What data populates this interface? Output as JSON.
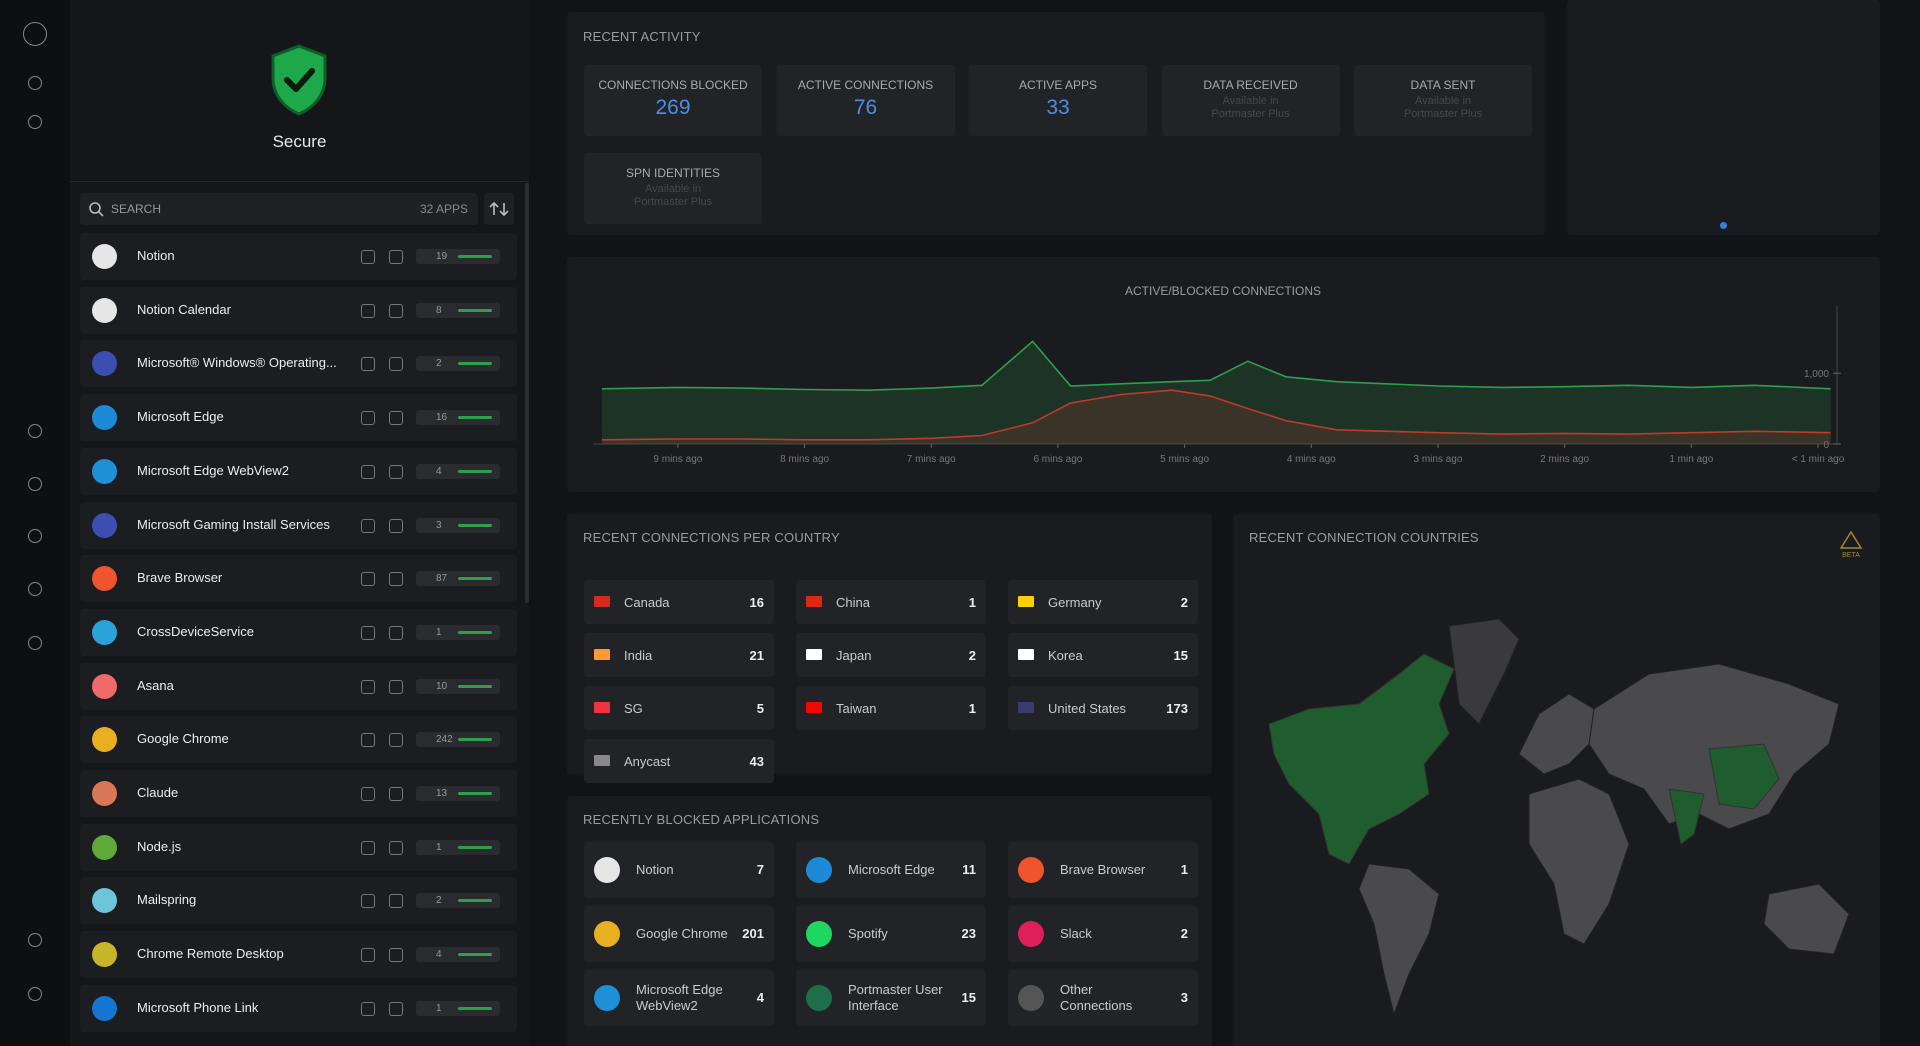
{
  "sidebar": {
    "status": "Secure",
    "search_placeholder": "SEARCH",
    "app_count": "32 APPS",
    "apps": [
      {
        "name": "Notion",
        "connections": 19
      },
      {
        "name": "Notion Calendar",
        "connections": 8
      },
      {
        "name": "Microsoft® Windows® Operating...",
        "connections": 2
      },
      {
        "name": "Microsoft Edge",
        "connections": 16
      },
      {
        "name": "Microsoft Edge WebView2",
        "connections": 4
      },
      {
        "name": "Microsoft Gaming Install Services",
        "connections": 3
      },
      {
        "name": "Brave Browser",
        "connections": 87
      },
      {
        "name": "CrossDeviceService",
        "connections": 1
      },
      {
        "name": "Asana",
        "connections": 10
      },
      {
        "name": "Google Chrome",
        "connections": 242
      },
      {
        "name": "Claude",
        "connections": 13
      },
      {
        "name": "Node.js",
        "connections": 1
      },
      {
        "name": "Mailspring",
        "connections": 2
      },
      {
        "name": "Chrome Remote Desktop",
        "connections": 4
      },
      {
        "name": "Microsoft Phone Link",
        "connections": 1
      }
    ]
  },
  "recent_activity": {
    "title": "RECENT ACTIVITY",
    "stats": [
      {
        "label": "CONNECTIONS BLOCKED",
        "value": 269
      },
      {
        "label": "ACTIVE CONNECTIONS",
        "value": 76
      },
      {
        "label": "ACTIVE APPS",
        "value": 33
      },
      {
        "label": "DATA RECEIVED",
        "note": "Available in Portmaster Plus"
      },
      {
        "label": "DATA SENT",
        "note": "Available in Portmaster Plus"
      },
      {
        "label": "SPN IDENTITIES",
        "note": "Available in Portmaster Plus"
      }
    ]
  },
  "chart_data": {
    "type": "line",
    "title": "ACTIVE/BLOCKED CONNECTIONS",
    "x": [
      9.6,
      9,
      8.5,
      8,
      7.5,
      7,
      6.6,
      6.2,
      5.9,
      5.5,
      5.1,
      4.8,
      4.5,
      4.2,
      3.8,
      3,
      2.5,
      2,
      1.5,
      1,
      0.5,
      -0.1
    ],
    "series": [
      {
        "color": "#2e9e4f",
        "values": [
          780,
          800,
          790,
          770,
          760,
          790,
          830,
          1450,
          820,
          850,
          880,
          900,
          1170,
          950,
          880,
          820,
          800,
          810,
          830,
          800,
          830,
          780
        ]
      },
      {
        "color": "#c0392b",
        "values": [
          60,
          70,
          70,
          60,
          60,
          80,
          120,
          300,
          580,
          700,
          760,
          680,
          500,
          330,
          200,
          160,
          140,
          150,
          140,
          160,
          180,
          160
        ]
      }
    ],
    "xlim": [
      9.67,
      -0.15
    ],
    "xticks": [
      {
        "value": 9,
        "label": "9 mins ago"
      },
      {
        "value": 8,
        "label": "8 mins ago"
      },
      {
        "value": 7,
        "label": "7 mins ago"
      },
      {
        "value": 6,
        "label": "6 mins ago"
      },
      {
        "value": 5,
        "label": "5 mins ago"
      },
      {
        "value": 4,
        "label": "4 mins ago"
      },
      {
        "value": 3,
        "label": "3 mins ago"
      },
      {
        "value": 2,
        "label": "2 mins ago"
      },
      {
        "value": 1,
        "label": "1 min ago"
      },
      {
        "value": 0,
        "label": "< 1 min ago"
      }
    ],
    "ylim": [
      0,
      1950
    ],
    "yticks": [
      0,
      {
        "value": 1000,
        "label": "1,000"
      }
    ]
  },
  "connections_per_country": {
    "title": "RECENT CONNECTIONS PER COUNTRY",
    "countries": [
      {
        "name": "Canada",
        "count": 16
      },
      {
        "name": "China",
        "count": 1
      },
      {
        "name": "Germany",
        "count": 2
      },
      {
        "name": "India",
        "count": 21
      },
      {
        "name": "Japan",
        "count": 2
      },
      {
        "name": "Korea",
        "count": 15
      },
      {
        "name": "SG",
        "count": 5
      },
      {
        "name": "Taiwan",
        "count": 1
      },
      {
        "name": "United States",
        "count": 173
      },
      {
        "name": "Anycast",
        "count": 43
      }
    ]
  },
  "blocked_apps": {
    "title": "RECENTLY BLOCKED APPLICATIONS",
    "apps": [
      {
        "name": "Notion",
        "count": 7
      },
      {
        "name": "Microsoft Edge",
        "count": 11
      },
      {
        "name": "Brave Browser",
        "count": 1
      },
      {
        "name": "Google Chrome",
        "count": 201
      },
      {
        "name": "Spotify",
        "count": 23
      },
      {
        "name": "Slack",
        "count": 2
      },
      {
        "name": "Microsoft Edge WebView2",
        "count": 4
      },
      {
        "name": "Portmaster User Interface",
        "count": 15
      },
      {
        "name": "Other Connections",
        "count": 3
      }
    ]
  },
  "map": {
    "title": "RECENT CONNECTION COUNTRIES",
    "badge": "BETA"
  }
}
